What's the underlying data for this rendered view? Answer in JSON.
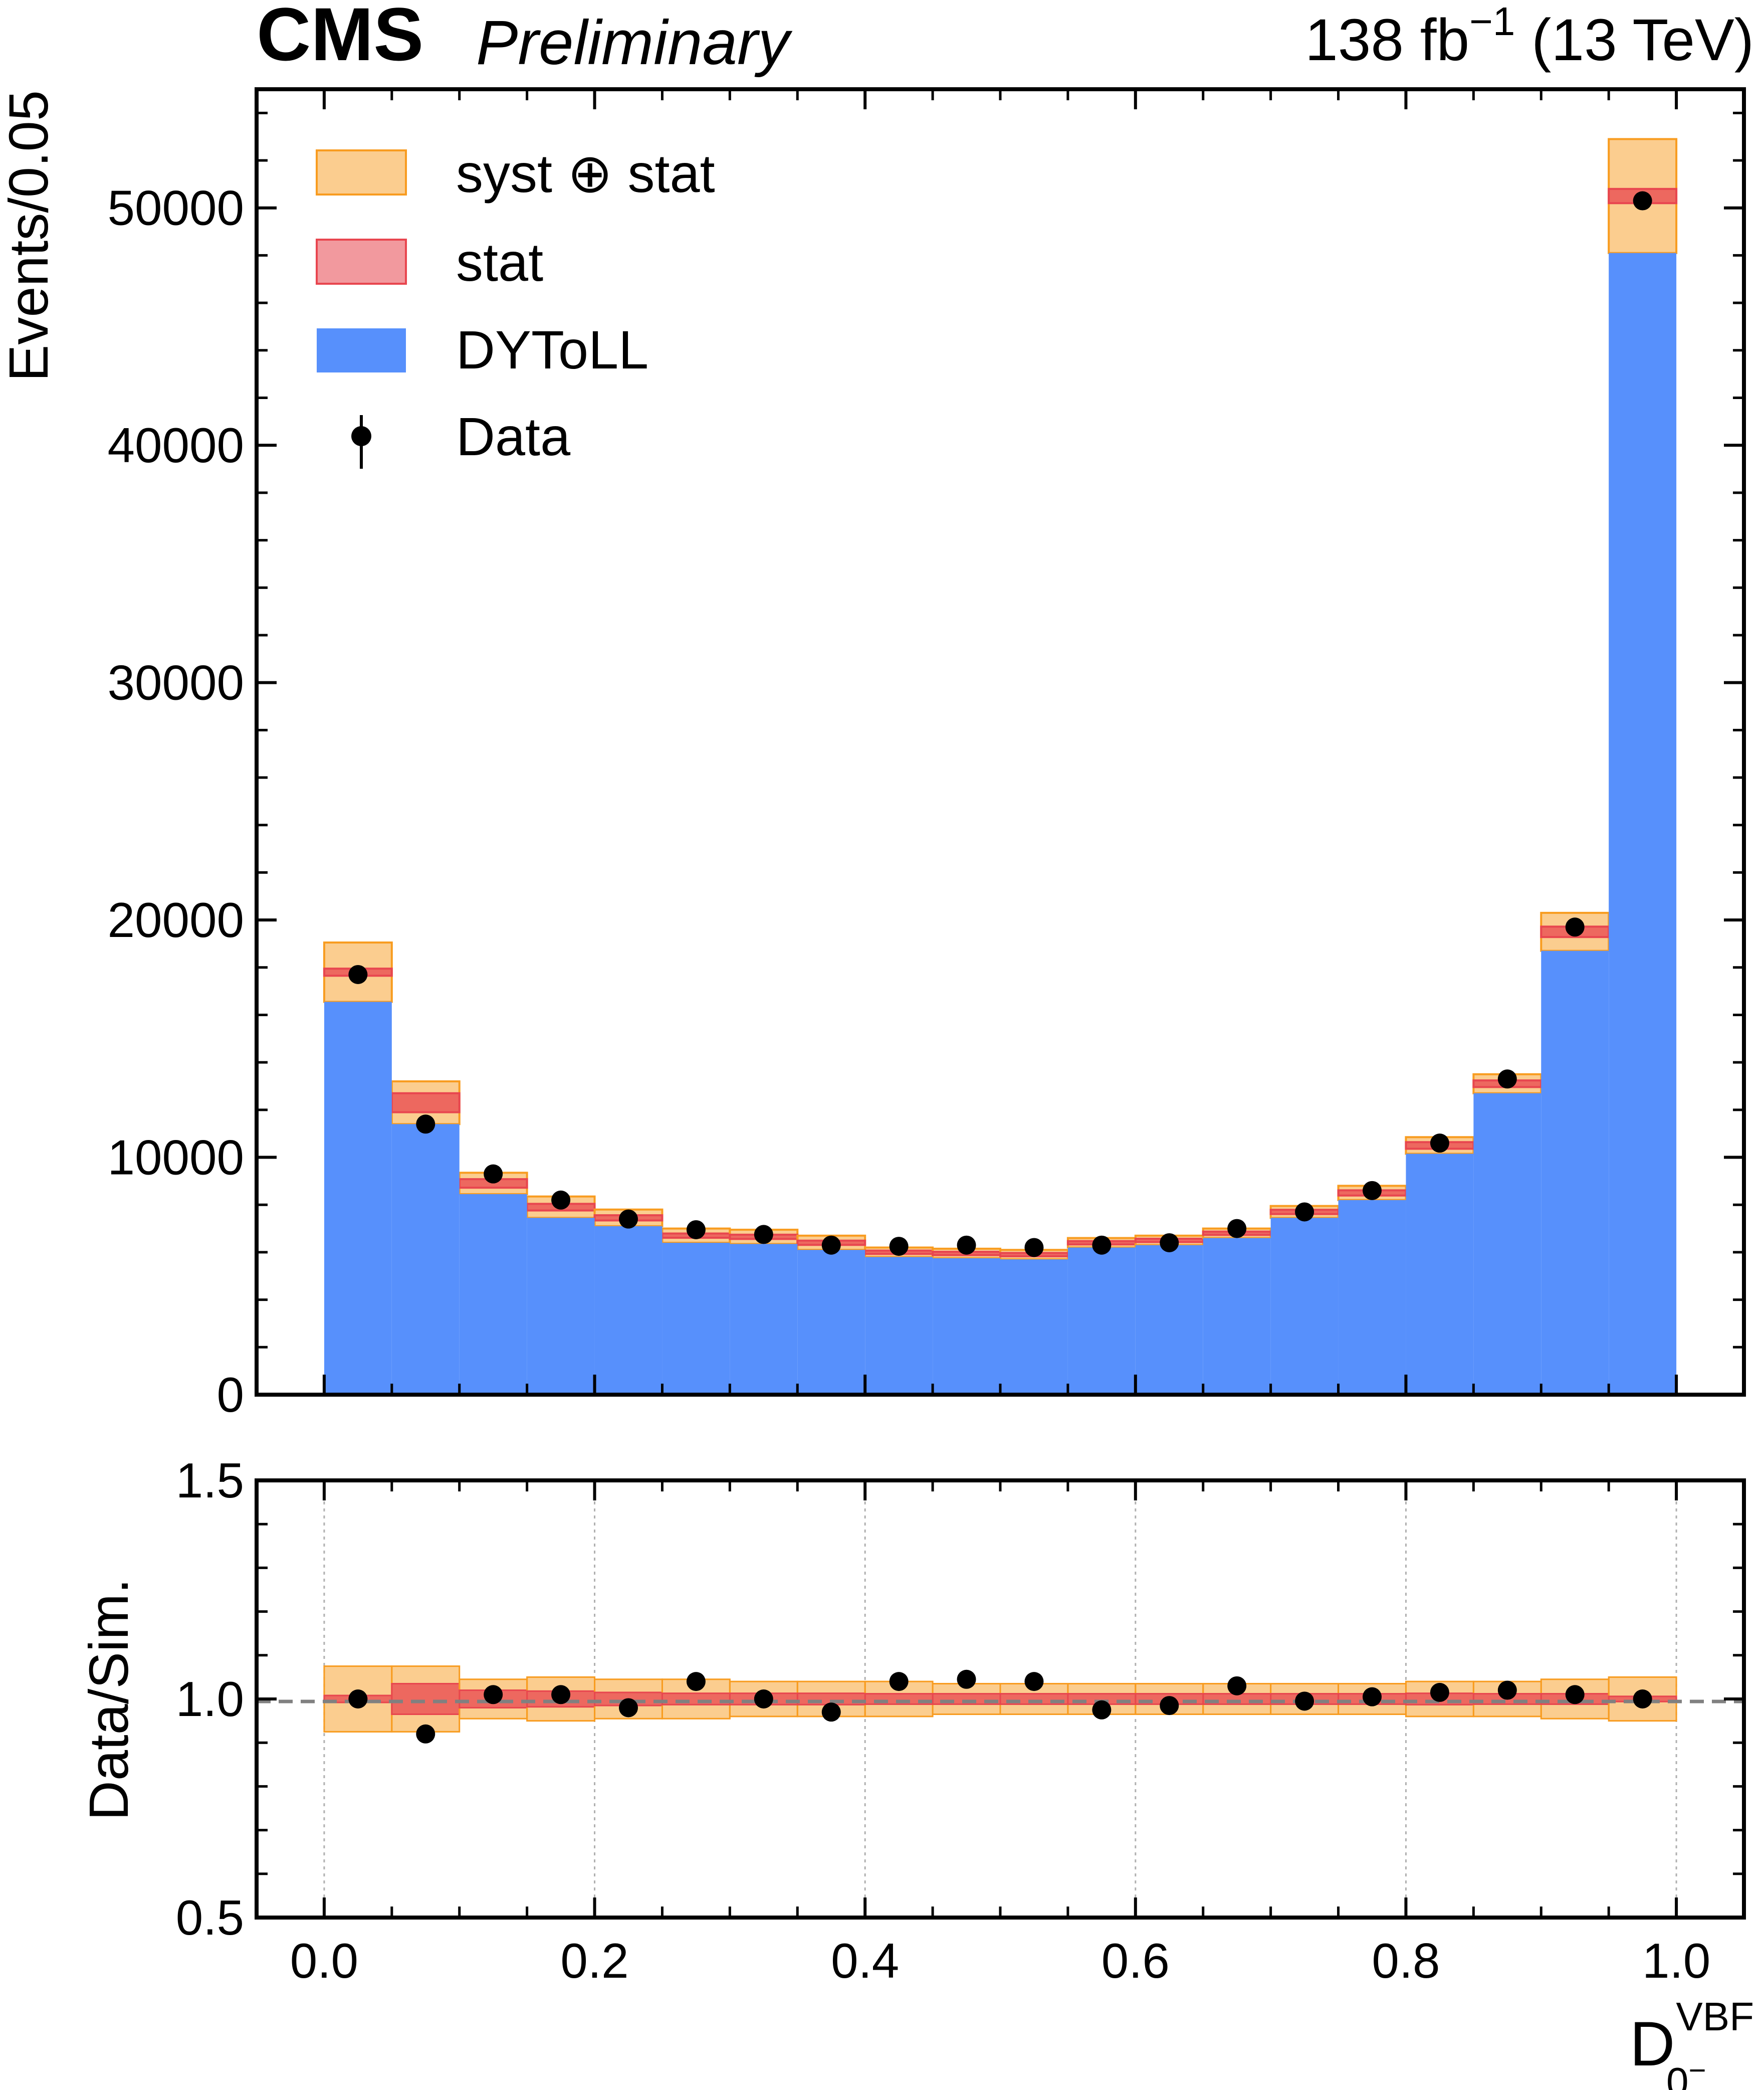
{
  "header": {
    "experiment": "CMS",
    "status": "Preliminary",
    "lumi": "138 fb",
    "lumi_exp": "−1",
    "energy": " (13 TeV)"
  },
  "legend": {
    "syst_stat": "syst ⊕ stat",
    "stat": "stat",
    "mc": "DYToLL",
    "data": "Data"
  },
  "colors": {
    "mc": "#5790fc",
    "stat": "#e8464f",
    "syst": "#f89c20",
    "data": "#000000",
    "unity_line": "#808080"
  },
  "chart_data": [
    {
      "type": "bar",
      "title": "",
      "xlabel": "",
      "ylabel": "Events/0.05",
      "bin_edges": [
        0.0,
        0.05,
        0.1,
        0.15,
        0.2,
        0.25,
        0.3,
        0.35,
        0.4,
        0.45,
        0.5,
        0.55,
        0.6,
        0.65,
        0.7,
        0.75,
        0.8,
        0.85,
        0.9,
        0.95,
        1.0
      ],
      "xlim": [
        -0.05,
        1.05
      ],
      "ylim": [
        0,
        55000
      ],
      "yticks": [
        0,
        10000,
        20000,
        30000,
        40000,
        50000
      ],
      "ytick_labels": [
        "0",
        "10000",
        "20000",
        "30000",
        "40000",
        "50000"
      ],
      "series": [
        {
          "name": "DYToLL",
          "values": [
            17800,
            12300,
            8900,
            7900,
            7450,
            6700,
            6650,
            6400,
            6000,
            5950,
            5900,
            6400,
            6500,
            6800,
            7700,
            8500,
            10500,
            13100,
            19500,
            50500
          ]
        },
        {
          "name": "stat",
          "values": [
            150,
            400,
            180,
            140,
            110,
            90,
            90,
            90,
            70,
            70,
            70,
            70,
            70,
            70,
            90,
            110,
            140,
            140,
            220,
            300
          ]
        },
        {
          "name": "syst ⊕ stat",
          "values": [
            1250,
            900,
            450,
            450,
            350,
            300,
            300,
            300,
            200,
            200,
            200,
            200,
            200,
            200,
            250,
            300,
            350,
            400,
            800,
            2400
          ]
        },
        {
          "name": "Data",
          "x": [
            0.025,
            0.075,
            0.125,
            0.175,
            0.225,
            0.275,
            0.325,
            0.375,
            0.425,
            0.475,
            0.525,
            0.575,
            0.625,
            0.675,
            0.725,
            0.775,
            0.825,
            0.875,
            0.925,
            0.975
          ],
          "values": [
            17700,
            11400,
            9300,
            8200,
            7400,
            6950,
            6750,
            6300,
            6250,
            6300,
            6200,
            6300,
            6400,
            7000,
            7700,
            8600,
            10600,
            13300,
            19700,
            50300
          ]
        }
      ]
    },
    {
      "type": "scatter",
      "title": "",
      "xlabel": "D",
      "xlabel_sup": "VBF",
      "xlabel_sub": "0",
      "xlabel_sub_sup": "−",
      "ylabel": "Data/Sim.",
      "xlim": [
        -0.05,
        1.05
      ],
      "ylim": [
        0.5,
        1.5
      ],
      "xticks": [
        0.0,
        0.2,
        0.4,
        0.6,
        0.8,
        1.0
      ],
      "xtick_labels": [
        "0.0",
        "0.2",
        "0.4",
        "0.6",
        "0.8",
        "1.0"
      ],
      "yticks": [
        0.5,
        1.0,
        1.5
      ],
      "ytick_labels": [
        "0.5",
        "1.0",
        "1.5"
      ],
      "reference_line": 1.0,
      "series": [
        {
          "name": "Data",
          "x": [
            0.025,
            0.075,
            0.125,
            0.175,
            0.225,
            0.275,
            0.325,
            0.375,
            0.425,
            0.475,
            0.525,
            0.575,
            0.625,
            0.675,
            0.725,
            0.775,
            0.825,
            0.875,
            0.925,
            0.975
          ],
          "values": [
            1.0,
            0.92,
            1.01,
            1.01,
            0.98,
            1.04,
            1.0,
            0.97,
            1.04,
            1.045,
            1.04,
            0.975,
            0.985,
            1.03,
            0.995,
            1.005,
            1.015,
            1.02,
            1.01,
            1.0
          ]
        },
        {
          "name": "stat",
          "values": [
            0.008,
            0.035,
            0.02,
            0.018,
            0.015,
            0.013,
            0.013,
            0.013,
            0.012,
            0.012,
            0.012,
            0.012,
            0.012,
            0.012,
            0.012,
            0.012,
            0.013,
            0.012,
            0.012,
            0.006
          ]
        },
        {
          "name": "syst ⊕ stat",
          "values": [
            0.075,
            0.075,
            0.045,
            0.05,
            0.045,
            0.045,
            0.04,
            0.04,
            0.04,
            0.035,
            0.035,
            0.035,
            0.035,
            0.035,
            0.035,
            0.035,
            0.04,
            0.04,
            0.045,
            0.05
          ]
        }
      ]
    }
  ]
}
